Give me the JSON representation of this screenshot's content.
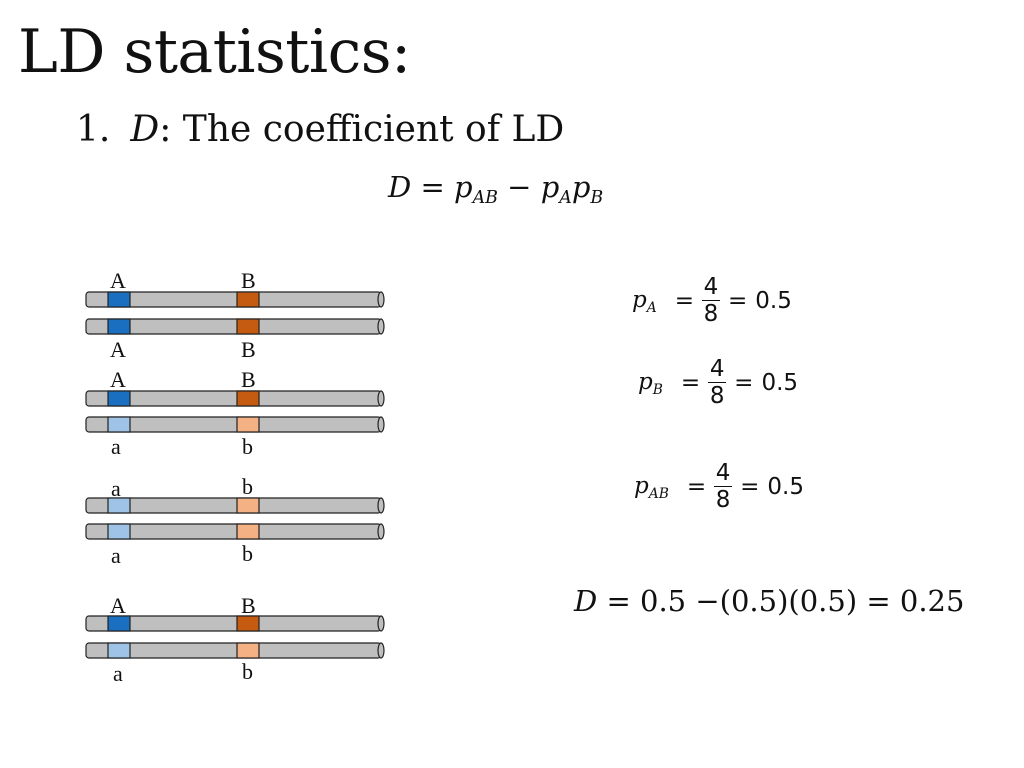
{
  "slide": {
    "title": "LD statistics:",
    "subtitle_number": "1.",
    "subtitle_var": "D",
    "subtitle_text": ": The coefficient of LD",
    "main_equation": {
      "lhs": "D",
      "rhs": "= p",
      "sub1": "AB",
      "minus": " − p",
      "sub2": "A",
      "p3": "p",
      "sub3": "B"
    }
  },
  "haplotype_pairs": [
    {
      "top": {
        "left": "A",
        "right": "B"
      },
      "bottom": {
        "left": "A",
        "right": "B"
      }
    },
    {
      "top": {
        "left": "A",
        "right": "B"
      },
      "bottom": {
        "left": "a",
        "right": "b"
      }
    },
    {
      "top": {
        "left": "a",
        "right": "b"
      },
      "bottom": {
        "left": "a",
        "right": "b"
      }
    },
    {
      "top": {
        "left": "A",
        "right": "B"
      },
      "bottom": {
        "left": "a",
        "right": "b"
      }
    }
  ],
  "frequencies": [
    {
      "var": "p",
      "sub": "A",
      "num": "4",
      "den": "8",
      "result": "0.5"
    },
    {
      "var": "p",
      "sub": "B",
      "num": "4",
      "den": "8",
      "result": "0.5"
    },
    {
      "var": "p",
      "sub": "AB",
      "num": "4",
      "den": "8",
      "result": "0.5"
    }
  ],
  "d_result": {
    "var": "D",
    "expr": "= 0.5 −(0.5)(0.5) = 0.25"
  },
  "colors": {
    "allele_A": "#1a6fc0",
    "allele_a": "#9fc3e6",
    "allele_B": "#c55a11",
    "allele_b": "#f4b183",
    "chromosome": "#bfbfbf"
  }
}
